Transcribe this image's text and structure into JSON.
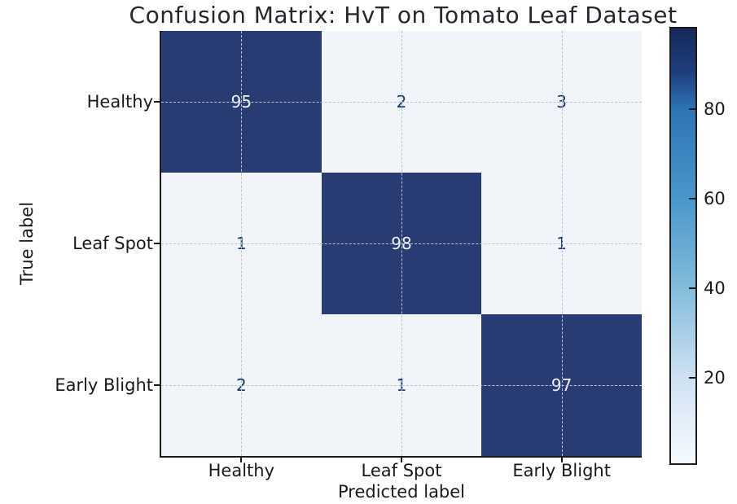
{
  "chart_data": {
    "type": "heatmap",
    "title": "Confusion Matrix: HvT on Tomato Leaf Dataset",
    "xlabel": "Predicted label",
    "ylabel": "True label",
    "x_categories": [
      "Healthy",
      "Leaf Spot",
      "Early Blight"
    ],
    "y_categories": [
      "Healthy",
      "Leaf Spot",
      "Early Blight"
    ],
    "matrix": [
      [
        95,
        2,
        3
      ],
      [
        1,
        98,
        1
      ],
      [
        2,
        1,
        97
      ]
    ],
    "colorbar_ticks": [
      80,
      60,
      40,
      20
    ],
    "color_scale": {
      "vmin": 1,
      "vmax": 98,
      "colormap": "Blues"
    },
    "grid": "dashed",
    "legend_position": "right-colorbar",
    "colors": {
      "cell_dark": "#283c73",
      "cell_light": "#f1f4f9",
      "annotation_on_dark": "#eef2f7",
      "annotation_on_light": "#1c3a70",
      "gridline": "#bdc4cf",
      "axis": "#1a1a1a",
      "title_text": "#26262e",
      "colorbar_stops": [
        "#16295a",
        "#1f3d7d",
        "#2d74b4",
        "#4a97cb",
        "#84bcdb",
        "#cfe1f2",
        "#f7fbff"
      ]
    }
  }
}
